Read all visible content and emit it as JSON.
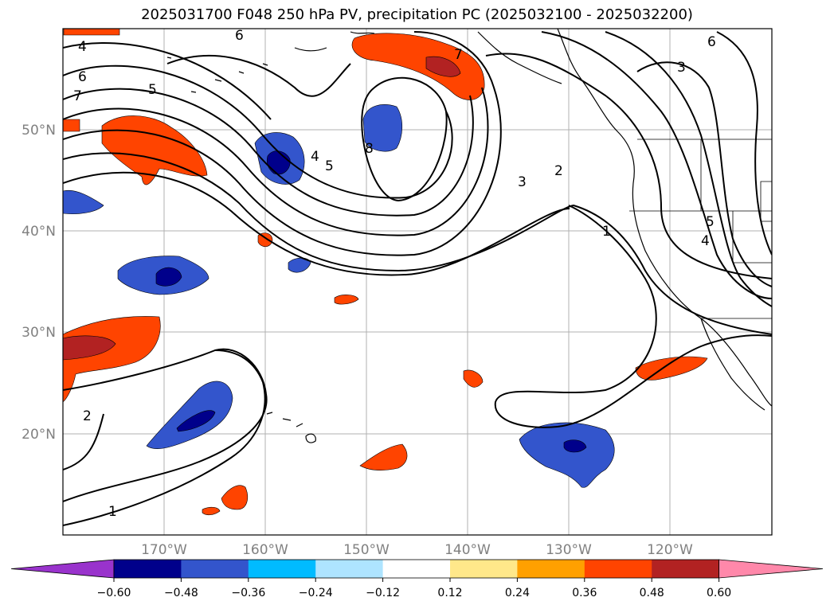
{
  "title": "2025031700 F048 250 hPa PV, precipitation PC (2025032100 - 2025032200)",
  "map": {
    "lat_ticks": [
      "50°N",
      "40°N",
      "30°N",
      "20°N"
    ],
    "lon_ticks": [
      "170°W",
      "160°W",
      "150°W",
      "140°W",
      "130°W",
      "120°W"
    ],
    "pv_contour_labels": [
      "4",
      "6",
      "7",
      "5",
      "6",
      "7",
      "8",
      "4",
      "5",
      "3",
      "2",
      "1",
      "3",
      "6",
      "5",
      "4",
      "2",
      "1"
    ]
  },
  "colorbar": {
    "ticks": [
      "−0.60",
      "−0.48",
      "−0.36",
      "−0.24",
      "−0.12",
      "0.12",
      "0.24",
      "0.36",
      "0.48",
      "0.60"
    ],
    "colors": [
      "#9933cc",
      "#00008b",
      "#3355cc",
      "#00bbff",
      "#aee4ff",
      "#ffffff",
      "#ffe88a",
      "#ffa000",
      "#ff4400",
      "#b22222",
      "#ff88aa"
    ]
  }
}
